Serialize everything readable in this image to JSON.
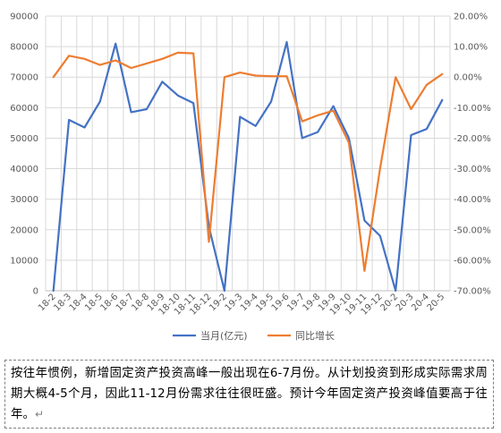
{
  "chart_data": {
    "type": "line",
    "title": "",
    "categories": [
      "18-2",
      "18-3",
      "18-4",
      "18-5",
      "18-6",
      "18-7",
      "18-8",
      "18-9",
      "18-10",
      "18-11",
      "18-12",
      "19-2",
      "19-3",
      "19-4",
      "19-5",
      "19-6",
      "19-7",
      "19-8",
      "19-9",
      "19-10",
      "19-11",
      "19-12",
      "20-2",
      "20-3",
      "20-4",
      "20-5"
    ],
    "y_left": {
      "min": 0,
      "max": 90000,
      "step": 10000,
      "tick_labels": [
        "0",
        "10000",
        "20000",
        "30000",
        "40000",
        "50000",
        "60000",
        "70000",
        "80000",
        "90000"
      ]
    },
    "y_right": {
      "min": -70,
      "max": 20,
      "step": 10,
      "tick_labels": [
        "-70.00%",
        "-60.00%",
        "-50.00%",
        "-40.00%",
        "-30.00%",
        "-20.00%",
        "-10.00%",
        "0.00%",
        "10.00%",
        "20.00%"
      ]
    },
    "series": [
      {
        "name": "当月(亿元)",
        "axis": "left",
        "color": "#4472c4",
        "values": [
          0,
          56000,
          53500,
          62000,
          81000,
          58500,
          59500,
          68500,
          64000,
          61500,
          21000,
          0,
          57000,
          54000,
          62000,
          81500,
          50000,
          52000,
          60500,
          50000,
          23000,
          18000,
          0,
          51000,
          53000,
          62500
        ]
      },
      {
        "name": "同比增长",
        "axis": "right",
        "color": "#ed7d31",
        "values": [
          0.0,
          7.0,
          6.0,
          4.0,
          5.5,
          3.0,
          4.5,
          6.0,
          8.0,
          7.8,
          -54.0,
          0.0,
          1.5,
          0.5,
          0.3,
          0.3,
          -14.5,
          -12.5,
          -11.0,
          -21.5,
          -63.5,
          -30.0,
          0.0,
          -10.5,
          -2.5,
          1.0
        ]
      }
    ],
    "grid": true,
    "legend_position": "bottom"
  },
  "note": {
    "text": "按往年惯例，新增固定资产投资高峰一般出现在6-7月份。从计划投资到形成实际需求周期大概4-5个月，因此11-12月份需求往往很旺盛。预计今年固定资产投资峰值要高于往年。",
    "para_mark": "↵"
  }
}
